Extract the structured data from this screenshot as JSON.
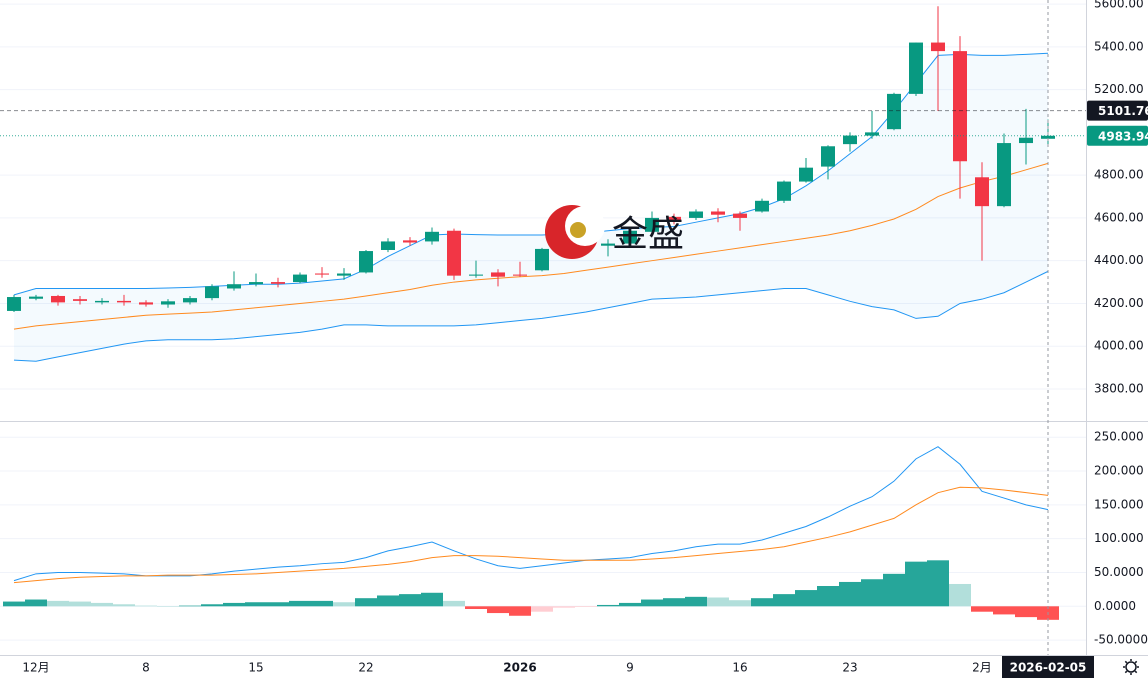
{
  "chart_data": [
    {
      "type": "candlestick",
      "categories": [
        null,
        "12月",
        null,
        null,
        null,
        null,
        "8",
        null,
        null,
        null,
        null,
        "15",
        null,
        null,
        null,
        null,
        "22",
        null,
        null,
        null,
        null,
        null,
        null,
        "2026",
        null,
        null,
        null,
        null,
        "9",
        null,
        null,
        null,
        null,
        "16",
        null,
        null,
        null,
        null,
        "23",
        null,
        null,
        null,
        null,
        null,
        "2月",
        null,
        null,
        "2026-02-05"
      ],
      "open": [
        4165,
        4222,
        4235,
        4220,
        4205,
        4212,
        4205,
        4195,
        4205,
        4225,
        4270,
        4290,
        4300,
        4300,
        4340,
        4330,
        4345,
        4450,
        4495,
        4490,
        4540,
        4330,
        4345,
        4335,
        4355,
        4460,
        4495,
        4470,
        4480,
        4535,
        4605,
        4600,
        4630,
        4620,
        4630,
        4680,
        4770,
        4840,
        4945,
        4985,
        5015,
        5180,
        5420,
        5380,
        4790,
        4655,
        4950,
        4970
      ],
      "high": [
        4240,
        4240,
        4240,
        4235,
        4225,
        4240,
        4215,
        4220,
        4235,
        4290,
        4350,
        4340,
        4320,
        4345,
        4370,
        4365,
        4450,
        4505,
        4510,
        4555,
        4550,
        4400,
        4360,
        4395,
        4460,
        4500,
        4510,
        4500,
        4545,
        4630,
        4620,
        4640,
        4645,
        4630,
        4690,
        4775,
        4880,
        4940,
        5000,
        5100,
        5185,
        5420,
        5590,
        5450,
        4860,
        4995,
        5110,
        5060
      ],
      "low": [
        4160,
        4215,
        4190,
        4195,
        4195,
        4190,
        4185,
        4180,
        4195,
        4215,
        4260,
        4280,
        4275,
        4295,
        4320,
        4310,
        4340,
        4440,
        4470,
        4475,
        4310,
        4320,
        4280,
        4325,
        4350,
        4450,
        4440,
        4420,
        4470,
        4525,
        4570,
        4590,
        4580,
        4540,
        4625,
        4670,
        4765,
        4780,
        4910,
        4970,
        5010,
        5170,
        5100,
        4690,
        4400,
        4650,
        4850,
        4945
      ],
      "close": [
        4230,
        4232,
        4205,
        4212,
        4212,
        4205,
        4195,
        4210,
        4225,
        4280,
        4290,
        4300,
        4292,
        4335,
        4335,
        4340,
        4445,
        4490,
        4485,
        4535,
        4330,
        4335,
        4325,
        4330,
        4455,
        4490,
        4465,
        4480,
        4540,
        4600,
        4585,
        4630,
        4615,
        4600,
        4680,
        4770,
        4835,
        4935,
        4985,
        5000,
        5180,
        5420,
        5380,
        4865,
        4655,
        4950,
        4975,
        4984
      ],
      "up_color": "#089981",
      "down_color": "#f23645",
      "series": [
        {
          "color": "#2196f3",
          "values": [
            4240,
            4270,
            4270,
            4270,
            4270,
            4270,
            4270,
            4272,
            4275,
            4280,
            4285,
            4290,
            4290,
            4295,
            4305,
            4315,
            4360,
            4420,
            4470,
            4520,
            4525,
            4522,
            4520,
            4520,
            4520,
            4525,
            4530,
            4540,
            4550,
            4555,
            4560,
            4580,
            4600,
            4620,
            4650,
            4690,
            4750,
            4820,
            4900,
            4980,
            5100,
            5230,
            5360,
            5365,
            5360,
            5360,
            5365,
            5370
          ]
        },
        {
          "color": "#ff8a1f",
          "values": [
            4080,
            4095,
            4105,
            4115,
            4125,
            4135,
            4145,
            4150,
            4155,
            4160,
            4170,
            4180,
            4190,
            4200,
            4210,
            4220,
            4235,
            4250,
            4265,
            4285,
            4300,
            4310,
            4318,
            4325,
            4330,
            4340,
            4355,
            4370,
            4385,
            4400,
            4415,
            4430,
            4445,
            4460,
            4475,
            4490,
            4505,
            4520,
            4540,
            4565,
            4595,
            4640,
            4700,
            4740,
            4770,
            4795,
            4825,
            4855
          ]
        },
        {
          "color": "#2196f3",
          "values": [
            3935,
            3930,
            3950,
            3970,
            3990,
            4010,
            4025,
            4030,
            4030,
            4030,
            4035,
            4045,
            4055,
            4065,
            4080,
            4100,
            4100,
            4095,
            4095,
            4095,
            4095,
            4100,
            4110,
            4120,
            4130,
            4145,
            4160,
            4180,
            4200,
            4220,
            4225,
            4230,
            4240,
            4250,
            4260,
            4270,
            4270,
            4240,
            4210,
            4185,
            4170,
            4130,
            4140,
            4200,
            4220,
            4250,
            4300,
            4350
          ]
        }
      ],
      "band_fill": "#2196f3",
      "price_lines": [
        {
          "value": 5101.76,
          "color": "#131722",
          "style": "dashed"
        },
        {
          "value": 4983.94,
          "color": "#089981",
          "style": "dotted"
        }
      ],
      "ylim": [
        3655,
        5619
      ],
      "yticks": [
        {
          "value": 3800,
          "label": "3800.00"
        },
        {
          "value": 4000,
          "label": "4000.00"
        },
        {
          "value": 4200,
          "label": "4200.00"
        },
        {
          "value": 4400,
          "label": "4400.00"
        },
        {
          "value": 4600,
          "label": "4600.00"
        },
        {
          "value": 4800,
          "label": "4800.00"
        },
        {
          "value": 5200,
          "label": "5200.00"
        },
        {
          "value": 5400,
          "label": "5400.00"
        },
        {
          "value": 5600,
          "label": "5600.00"
        }
      ],
      "grid": true,
      "crosshair": 47,
      "watermark": "金盛"
    },
    {
      "type": "macd",
      "series": [
        {
          "color": "#2196f3",
          "values": [
            38,
            48,
            50,
            50,
            49,
            48,
            45,
            45,
            45,
            48,
            52,
            55,
            58,
            60,
            63,
            65,
            72,
            82,
            88,
            95,
            82,
            70,
            60,
            56,
            60,
            64,
            68,
            70,
            72,
            78,
            82,
            88,
            92,
            92,
            98,
            108,
            118,
            132,
            148,
            162,
            185,
            218,
            236,
            210,
            170,
            160,
            150,
            143
          ]
        },
        {
          "color": "#ff8a1f",
          "values": [
            35,
            38,
            41,
            43,
            44,
            45,
            45,
            46,
            46,
            46,
            47,
            48,
            50,
            52,
            54,
            56,
            59,
            62,
            66,
            72,
            75,
            75,
            74,
            72,
            70,
            68,
            68,
            68,
            68,
            70,
            72,
            75,
            78,
            81,
            84,
            88,
            95,
            102,
            110,
            120,
            130,
            150,
            168,
            176,
            175,
            172,
            168,
            164
          ]
        }
      ],
      "histogram": [
        7,
        10,
        8,
        7,
        5,
        3,
        1,
        0,
        1,
        3,
        5,
        6,
        6,
        8,
        8,
        6,
        12,
        16,
        18,
        20,
        8,
        -4,
        -10,
        -14,
        -8,
        -2,
        -1,
        2,
        5,
        10,
        12,
        14,
        13,
        9,
        12,
        18,
        24,
        30,
        36,
        40,
        48,
        66,
        68,
        33,
        -8,
        -12,
        -16,
        -20
      ],
      "hist_colors": [
        "#26a69a",
        "#b2dfdb",
        "#ff5252",
        "#ffcdd2"
      ],
      "ylim": [
        -72,
        271
      ],
      "yticks": [
        {
          "value": -50,
          "label": "-50.0000"
        },
        {
          "value": 0,
          "label": "0.0000"
        },
        {
          "value": 50,
          "label": "50.0000"
        },
        {
          "value": 100,
          "label": "100.000"
        },
        {
          "value": 150,
          "label": "150.000"
        },
        {
          "value": 200,
          "label": "200.000"
        },
        {
          "value": 250,
          "label": "250.000"
        }
      ],
      "grid": true
    }
  ]
}
